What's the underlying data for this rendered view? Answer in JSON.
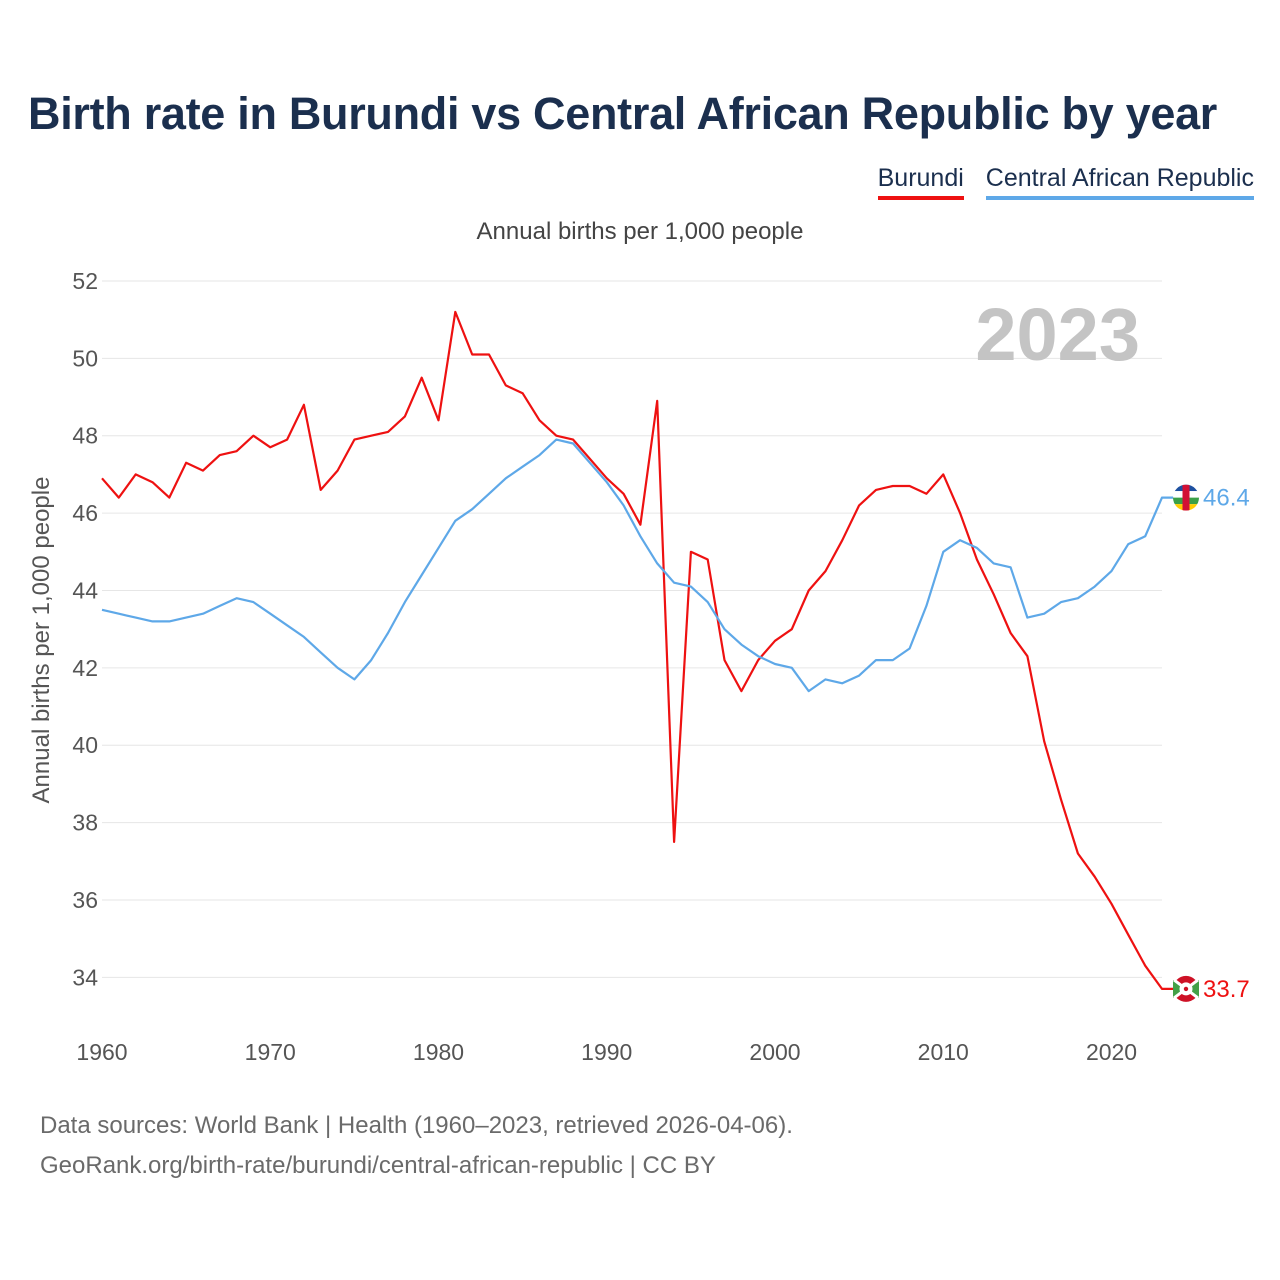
{
  "title": "Birth rate in Burundi vs Central African Republic by year",
  "subtitle": "Annual births per 1,000 people",
  "year_badge": "2023",
  "legend": [
    {
      "label": "Burundi",
      "color": "#ee1111"
    },
    {
      "label": "Central African Republic",
      "color": "#5ea8e8"
    }
  ],
  "footer": {
    "line1": "Data sources: World Bank | Health (1960–2023, retrieved 2026-04-06).",
    "line2": "GeoRank.org/birth-rate/burundi/central-african-republic | CC BY"
  },
  "chart_data": {
    "type": "line",
    "title": "Birth rate in Burundi vs Central African Republic by year",
    "xlabel": "",
    "ylabel": "Annual births per 1,000 people",
    "xlim": [
      1960,
      2023
    ],
    "ylim": [
      33,
      52
    ],
    "xticks": [
      1960,
      1970,
      1980,
      1990,
      2000,
      2010,
      2020
    ],
    "yticks": [
      34,
      36,
      38,
      40,
      42,
      44,
      46,
      48,
      50,
      52
    ],
    "grid": true,
    "series": [
      {
        "name": "Burundi",
        "color": "#ee1111",
        "end_label": "33.7",
        "x": [
          1960,
          1961,
          1962,
          1963,
          1964,
          1965,
          1966,
          1967,
          1968,
          1969,
          1970,
          1971,
          1972,
          1973,
          1974,
          1975,
          1976,
          1977,
          1978,
          1979,
          1980,
          1981,
          1982,
          1983,
          1984,
          1985,
          1986,
          1987,
          1988,
          1989,
          1990,
          1991,
          1992,
          1993,
          1994,
          1995,
          1996,
          1997,
          1998,
          1999,
          2000,
          2001,
          2002,
          2003,
          2004,
          2005,
          2006,
          2007,
          2008,
          2009,
          2010,
          2011,
          2012,
          2013,
          2014,
          2015,
          2016,
          2017,
          2018,
          2019,
          2020,
          2021,
          2022,
          2023
        ],
        "values": [
          46.9,
          46.4,
          47.0,
          46.8,
          46.4,
          47.3,
          47.1,
          47.5,
          47.6,
          48.0,
          47.7,
          47.9,
          48.8,
          46.6,
          47.1,
          47.9,
          48.0,
          48.1,
          48.5,
          49.5,
          48.4,
          51.2,
          50.1,
          50.1,
          49.3,
          49.1,
          48.4,
          48.0,
          47.9,
          47.4,
          46.9,
          46.5,
          45.7,
          48.9,
          37.5,
          45.0,
          44.8,
          42.2,
          41.4,
          42.2,
          42.7,
          43.0,
          44.0,
          44.5,
          45.3,
          46.2,
          46.6,
          46.7,
          46.7,
          46.5,
          47.0,
          46.0,
          44.8,
          43.9,
          42.9,
          42.3,
          40.1,
          38.6,
          37.2,
          36.6,
          35.9,
          35.1,
          34.3,
          33.7
        ]
      },
      {
        "name": "Central African Republic",
        "color": "#5ea8e8",
        "end_label": "46.4",
        "x": [
          1960,
          1961,
          1962,
          1963,
          1964,
          1965,
          1966,
          1967,
          1968,
          1969,
          1970,
          1971,
          1972,
          1973,
          1974,
          1975,
          1976,
          1977,
          1978,
          1979,
          1980,
          1981,
          1982,
          1983,
          1984,
          1985,
          1986,
          1987,
          1988,
          1989,
          1990,
          1991,
          1992,
          1993,
          1994,
          1995,
          1996,
          1997,
          1998,
          1999,
          2000,
          2001,
          2002,
          2003,
          2004,
          2005,
          2006,
          2007,
          2008,
          2009,
          2010,
          2011,
          2012,
          2013,
          2014,
          2015,
          2016,
          2017,
          2018,
          2019,
          2020,
          2021,
          2022,
          2023
        ],
        "values": [
          43.5,
          43.4,
          43.3,
          43.2,
          43.2,
          43.3,
          43.4,
          43.6,
          43.8,
          43.7,
          43.4,
          43.1,
          42.8,
          42.4,
          42.0,
          41.7,
          42.2,
          42.9,
          43.7,
          44.4,
          45.1,
          45.8,
          46.1,
          46.5,
          46.9,
          47.2,
          47.5,
          47.9,
          47.8,
          47.3,
          46.8,
          46.2,
          45.4,
          44.7,
          44.2,
          44.1,
          43.7,
          43.0,
          42.6,
          42.3,
          42.1,
          42.0,
          41.4,
          41.7,
          41.6,
          41.8,
          42.2,
          42.2,
          42.5,
          43.6,
          45.0,
          45.3,
          45.1,
          44.7,
          44.6,
          43.3,
          43.4,
          43.7,
          43.8,
          44.1,
          44.5,
          45.2,
          45.4,
          46.4
        ]
      }
    ]
  }
}
